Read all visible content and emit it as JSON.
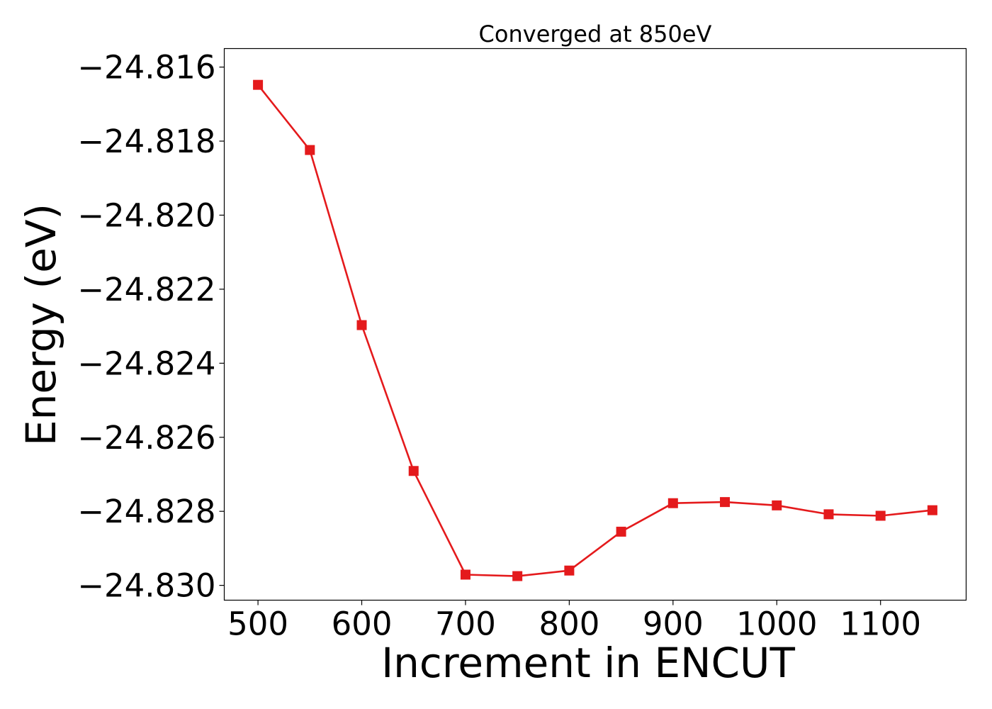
{
  "chart_data": {
    "type": "line",
    "title": "Converged at 850eV",
    "xlabel": "Increment in ENCUT",
    "ylabel": "Energy (eV)",
    "xlim": [
      467.5,
      1182.5
    ],
    "ylim": [
      -24.8304,
      -24.8155
    ],
    "x_ticks": [
      500,
      600,
      700,
      800,
      900,
      1000,
      1100
    ],
    "y_ticks": [
      -24.816,
      -24.818,
      -24.82,
      -24.822,
      -24.824,
      -24.826,
      -24.828,
      -24.83
    ],
    "x_tick_labels": [
      "500",
      "600",
      "700",
      "800",
      "900",
      "1000",
      "1100"
    ],
    "y_tick_labels": [
      "−24.816",
      "−24.818",
      "−24.820",
      "−24.822",
      "−24.824",
      "−24.826",
      "−24.828",
      "−24.830"
    ],
    "grid": false,
    "series": [
      {
        "color": "#e41a1c",
        "marker": "square",
        "x": [
          500,
          550,
          600,
          650,
          700,
          750,
          800,
          850,
          900,
          950,
          1000,
          1050,
          1100,
          1150
        ],
        "y": [
          -24.81648,
          -24.81824,
          -24.82297,
          -24.82691,
          -24.82971,
          -24.82975,
          -24.8296,
          -24.82855,
          -24.82778,
          -24.82775,
          -24.82784,
          -24.82808,
          -24.82812,
          -24.82797
        ]
      }
    ]
  }
}
